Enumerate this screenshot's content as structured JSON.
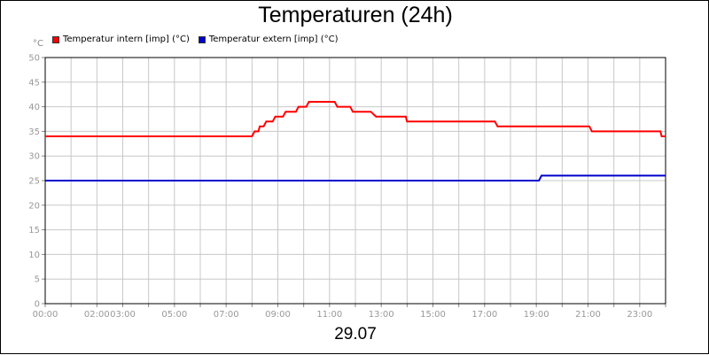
{
  "chart_data": {
    "type": "line",
    "title": "Temperaturen (24h)",
    "date_label": "29.07",
    "y_unit": "°C",
    "ylim": [
      0,
      50
    ],
    "y_ticks": [
      0,
      5,
      10,
      15,
      20,
      25,
      30,
      35,
      40,
      45,
      50
    ],
    "xlim": [
      0,
      24
    ],
    "x_ticks": [
      {
        "x": 0,
        "label": "00:00"
      },
      {
        "x": 2,
        "label": "02:00"
      },
      {
        "x": 3,
        "label": "03:00"
      },
      {
        "x": 5,
        "label": "05:00"
      },
      {
        "x": 7,
        "label": "07:00"
      },
      {
        "x": 9,
        "label": "09:00"
      },
      {
        "x": 11,
        "label": "11:00"
      },
      {
        "x": 13,
        "label": "13:00"
      },
      {
        "x": 15,
        "label": "15:00"
      },
      {
        "x": 17,
        "label": "17:00"
      },
      {
        "x": 19,
        "label": "19:00"
      },
      {
        "x": 21,
        "label": "21:00"
      },
      {
        "x": 23,
        "label": "23:00"
      }
    ],
    "grid": true,
    "legend_position": "top-left",
    "series": [
      {
        "name": "Temperatur intern [imp] (°C)",
        "color": "#ff0000",
        "points": [
          [
            0,
            34
          ],
          [
            8.0,
            34
          ],
          [
            8.1,
            35
          ],
          [
            8.25,
            35
          ],
          [
            8.3,
            36
          ],
          [
            8.45,
            36
          ],
          [
            8.55,
            37
          ],
          [
            8.8,
            37
          ],
          [
            8.9,
            38
          ],
          [
            9.2,
            38
          ],
          [
            9.3,
            39
          ],
          [
            9.7,
            39
          ],
          [
            9.8,
            40
          ],
          [
            10.1,
            40
          ],
          [
            10.2,
            41
          ],
          [
            11.2,
            41
          ],
          [
            11.3,
            40
          ],
          [
            11.8,
            40
          ],
          [
            11.9,
            39
          ],
          [
            12.6,
            39
          ],
          [
            12.8,
            38
          ],
          [
            13.95,
            38
          ],
          [
            14.0,
            37
          ],
          [
            17.4,
            37
          ],
          [
            17.5,
            36
          ],
          [
            21.05,
            36
          ],
          [
            21.15,
            35
          ],
          [
            23.8,
            35
          ],
          [
            23.85,
            34
          ],
          [
            24,
            34
          ]
        ]
      },
      {
        "name": "Temperatur extern [imp] (°C)",
        "color": "#0000cc",
        "points": [
          [
            0,
            25
          ],
          [
            19.1,
            25
          ],
          [
            19.2,
            26
          ],
          [
            24,
            26
          ]
        ]
      }
    ]
  }
}
